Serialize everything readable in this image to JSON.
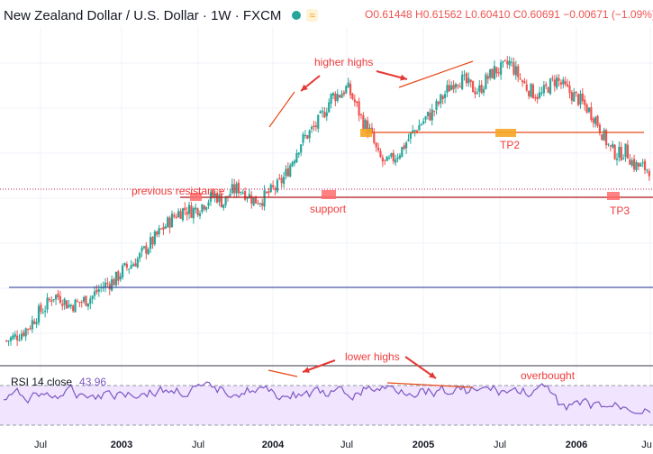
{
  "header": {
    "symbol": "New Zealand Dollar / U.S. Dollar · 1W · FXCM",
    "ohlc": "O0.61448 H0.61562 L0.60410 C0.60691 −0.00671 (−1.09%)",
    "flag_icon": "currency-flag-icon"
  },
  "annotations": {
    "higher_highs": "higher highs",
    "previous_resistance": "previous resistance",
    "support": "support",
    "tp2": "TP2",
    "tp3": "TP3",
    "lower_highs": "lower highs",
    "overbought": "overbought"
  },
  "rsi": {
    "label": "RSI 14 close",
    "value": "43.96"
  },
  "x_axis": [
    "Jul",
    "2003",
    "Jul",
    "2004",
    "Jul",
    "2005",
    "Jul",
    "2006",
    "Ju"
  ],
  "colors": {
    "up": "#26a69a",
    "down": "#ef5350",
    "line": "#c0392b",
    "rsi": "#7e57c2",
    "rsi_band": "#f0e4ff",
    "marker": "#f5a623"
  },
  "chart_data": {
    "type": "candlestick",
    "series": "NZD/USD weekly",
    "path": [
      0.418,
      0.422,
      0.428,
      0.436,
      0.45,
      0.458,
      0.472,
      0.47,
      0.46,
      0.462,
      0.466,
      0.47,
      0.48,
      0.486,
      0.49,
      0.502,
      0.508,
      0.516,
      0.528,
      0.538,
      0.55,
      0.56,
      0.57,
      0.575,
      0.573,
      0.578,
      0.586,
      0.592,
      0.582,
      0.596,
      0.6,
      0.594,
      0.585,
      0.587,
      0.595,
      0.602,
      0.615,
      0.635,
      0.655,
      0.665,
      0.675,
      0.69,
      0.71,
      0.712,
      0.72,
      0.702,
      0.68,
      0.666,
      0.638,
      0.628,
      0.636,
      0.646,
      0.66,
      0.672,
      0.682,
      0.69,
      0.704,
      0.718,
      0.73,
      0.728,
      0.72,
      0.716,
      0.73,
      0.74,
      0.742,
      0.75,
      0.735,
      0.722,
      0.714,
      0.71,
      0.722,
      0.73,
      0.72,
      0.712,
      0.705,
      0.695,
      0.684,
      0.664,
      0.646,
      0.64,
      0.645,
      0.628,
      0.625,
      0.623
    ]
  }
}
